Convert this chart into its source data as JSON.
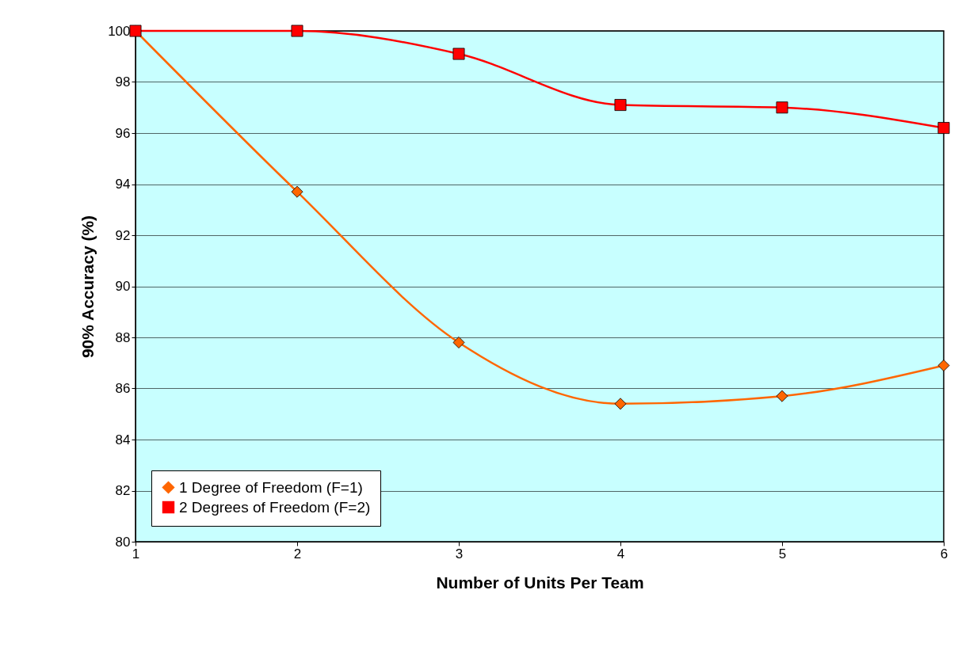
{
  "chart_data": {
    "type": "line",
    "xlabel": "Number of Units Per Team",
    "ylabel": "90% Accuracy (%)",
    "x": [
      1,
      2,
      3,
      4,
      5,
      6
    ],
    "series": [
      {
        "name": "1 Degree of Freedom (F=1)",
        "color": "#ff6600",
        "marker": "diamond",
        "values": [
          100,
          93.7,
          87.8,
          85.4,
          85.7,
          86.9
        ]
      },
      {
        "name": "2 Degrees of Freedom (F=2)",
        "color": "#ff0000",
        "marker": "square",
        "values": [
          100,
          100,
          99.1,
          97.1,
          97.0,
          96.2
        ]
      }
    ],
    "xlim": [
      1,
      6
    ],
    "xticks": [
      1,
      2,
      3,
      4,
      5,
      6
    ],
    "ylim": [
      80,
      100
    ],
    "yticks": [
      80,
      82,
      84,
      86,
      88,
      90,
      92,
      94,
      96,
      98,
      100
    ],
    "grid": "y",
    "legend": "bottom left",
    "line_style": "solid"
  }
}
